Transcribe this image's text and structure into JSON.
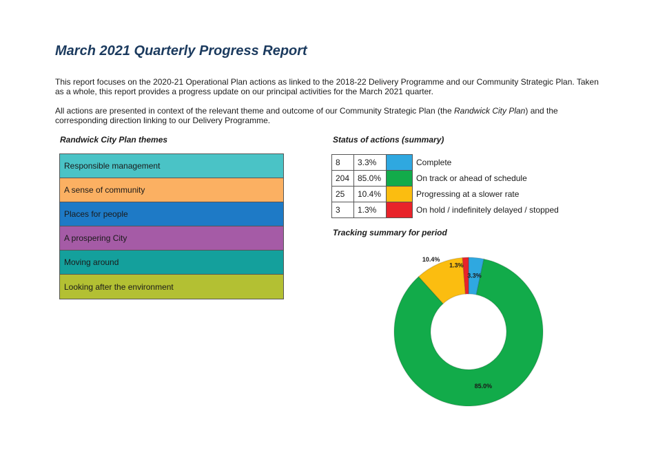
{
  "report": {
    "title": "March 2021 Quarterly Progress Report",
    "para1": "This report focuses on the 2020-21 Operational Plan actions as linked to the 2018-22 Delivery Programme and our Community Strategic Plan. Taken as a whole, this report provides a progress update on our principal activities for the March 2021 quarter.",
    "para2_before": "All actions are presented in context of the relevant theme and outcome of our Community Strategic Plan (the ",
    "para2_italic": "Randwick City Plan",
    "para2_after": ") and the corresponding direction linking to our Delivery Programme."
  },
  "themes": {
    "label": "Randwick City Plan themes",
    "items": [
      {
        "label": "Responsible management",
        "color": "#4ac3c6"
      },
      {
        "label": "A sense of community",
        "color": "#fbb062"
      },
      {
        "label": "Places for people",
        "color": "#1e7ac6"
      },
      {
        "label": "A prospering City",
        "color": "#a55ba6"
      },
      {
        "label": "Moving around",
        "color": "#14a09c"
      },
      {
        "label": "Looking after the environment",
        "color": "#b3c033"
      }
    ]
  },
  "status": {
    "label": "Status of actions (summary)",
    "rows": [
      {
        "count": "8",
        "pct": "3.3%",
        "label": "Complete",
        "color": "#2fa8e0"
      },
      {
        "count": "204",
        "pct": "85.0%",
        "label": "On track or ahead of schedule",
        "color": "#12ab4a"
      },
      {
        "count": "25",
        "pct": "10.4%",
        "label": "Progressing at a slower rate",
        "color": "#fbbd10"
      },
      {
        "count": "3",
        "pct": "1.3%",
        "label": "On hold / indefinitely delayed / stopped",
        "color": "#e8232a"
      }
    ]
  },
  "tracking": {
    "label": "Tracking summary for period"
  },
  "chart_data": {
    "type": "pie",
    "title": "",
    "donut": true,
    "slices": [
      {
        "label": "Complete",
        "value": 3.3,
        "display": "3.3%",
        "color": "#2fa8e0"
      },
      {
        "label": "On track or ahead of schedule",
        "value": 85.0,
        "display": "85.0%",
        "color": "#12ab4a"
      },
      {
        "label": "Progressing at a slower rate",
        "value": 10.4,
        "display": "10.4%",
        "color": "#fbbd10"
      },
      {
        "label": "On hold / indefinitely delayed / stopped",
        "value": 1.3,
        "display": "1.3%",
        "color": "#e8232a"
      }
    ]
  }
}
